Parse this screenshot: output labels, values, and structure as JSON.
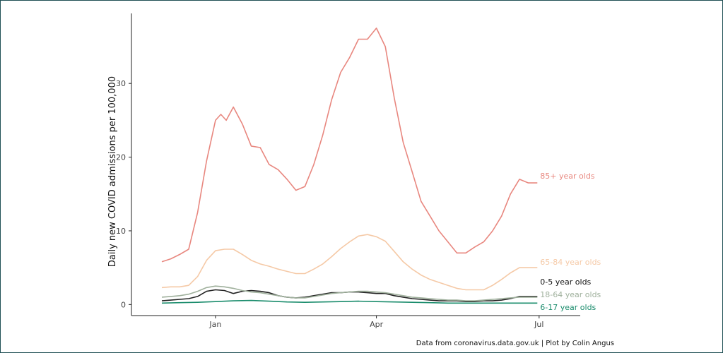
{
  "chart_data": {
    "type": "line",
    "ylabel": "Daily new COVID admissions per 100,000",
    "xlabel": "",
    "ylim": [
      -1.5,
      39.5
    ],
    "yticks": [
      0,
      10,
      20,
      30
    ],
    "xlim": [
      -47,
      204
    ],
    "xticks": [
      {
        "label": "Jan",
        "day": 0
      },
      {
        "label": "Apr",
        "day": 90
      },
      {
        "label": "Jul",
        "day": 181
      }
    ],
    "caption": "Data from coronavirus.data.gov.uk | Plot by Colin Angus",
    "grid": false,
    "legend": "direct labels at line ends",
    "series": [
      {
        "name": "85+ year olds",
        "color": "#e8877f",
        "x": [
          -30,
          -25,
          -20,
          -15,
          -10,
          -5,
          0,
          3,
          6,
          10,
          15,
          20,
          25,
          30,
          35,
          40,
          45,
          50,
          55,
          60,
          65,
          70,
          75,
          80,
          85,
          90,
          95,
          100,
          105,
          110,
          115,
          120,
          125,
          130,
          135,
          140,
          145,
          150,
          155,
          160,
          165,
          170,
          175,
          180
        ],
        "y": [
          5.8,
          6.2,
          6.8,
          7.5,
          12.5,
          19.5,
          25.0,
          25.8,
          25.0,
          26.8,
          24.5,
          21.5,
          21.3,
          19.0,
          18.3,
          17.0,
          15.5,
          16.0,
          19.0,
          23.0,
          27.8,
          31.5,
          33.5,
          36.0,
          36.0,
          37.5,
          35.0,
          28.0,
          22.0,
          18.0,
          14.0,
          12.0,
          10.0,
          8.5,
          7.0,
          7.0,
          7.8,
          8.5,
          10.0,
          12.0,
          15.0,
          17.0,
          16.5,
          16.5
        ]
      },
      {
        "name": "65-84 year olds",
        "color": "#f5c9a6",
        "x": [
          -30,
          -25,
          -20,
          -15,
          -10,
          -5,
          0,
          5,
          10,
          15,
          20,
          25,
          30,
          35,
          40,
          45,
          50,
          55,
          60,
          65,
          70,
          75,
          80,
          85,
          90,
          95,
          100,
          105,
          110,
          115,
          120,
          125,
          130,
          135,
          140,
          145,
          150,
          155,
          160,
          165,
          170,
          175,
          180
        ],
        "y": [
          2.3,
          2.4,
          2.4,
          2.6,
          3.8,
          6.0,
          7.3,
          7.5,
          7.5,
          6.8,
          6.0,
          5.5,
          5.2,
          4.8,
          4.5,
          4.2,
          4.2,
          4.8,
          5.5,
          6.5,
          7.6,
          8.5,
          9.3,
          9.5,
          9.2,
          8.6,
          7.2,
          5.8,
          4.8,
          4.0,
          3.4,
          3.0,
          2.6,
          2.2,
          2.0,
          2.0,
          2.0,
          2.6,
          3.4,
          4.3,
          5.0,
          5.0,
          5.0
        ]
      },
      {
        "name": "0-5 year olds",
        "color": "#222222",
        "x": [
          -30,
          -25,
          -20,
          -15,
          -10,
          -5,
          0,
          5,
          10,
          15,
          20,
          25,
          30,
          35,
          40,
          45,
          50,
          55,
          60,
          65,
          70,
          75,
          80,
          85,
          90,
          95,
          100,
          105,
          110,
          115,
          120,
          125,
          130,
          135,
          140,
          145,
          150,
          155,
          160,
          165,
          170,
          175,
          180
        ],
        "y": [
          0.5,
          0.6,
          0.7,
          0.8,
          1.1,
          1.8,
          2.0,
          1.9,
          1.5,
          1.8,
          1.9,
          1.8,
          1.6,
          1.2,
          1.0,
          0.9,
          1.0,
          1.2,
          1.4,
          1.6,
          1.6,
          1.7,
          1.7,
          1.6,
          1.5,
          1.5,
          1.2,
          1.0,
          0.8,
          0.7,
          0.6,
          0.5,
          0.5,
          0.5,
          0.4,
          0.4,
          0.5,
          0.5,
          0.6,
          0.8,
          1.1,
          1.1,
          1.1
        ]
      },
      {
        "name": "18-64 year olds",
        "color": "#9fb09c",
        "x": [
          -30,
          -25,
          -20,
          -15,
          -10,
          -5,
          0,
          5,
          10,
          15,
          20,
          25,
          30,
          35,
          40,
          45,
          50,
          55,
          60,
          65,
          70,
          75,
          80,
          85,
          90,
          95,
          100,
          105,
          110,
          115,
          120,
          125,
          130,
          135,
          140,
          145,
          150,
          155,
          160,
          165,
          170,
          175,
          180
        ],
        "y": [
          1.0,
          1.1,
          1.2,
          1.4,
          1.8,
          2.3,
          2.5,
          2.4,
          2.2,
          1.9,
          1.7,
          1.6,
          1.4,
          1.2,
          1.0,
          0.9,
          0.9,
          1.1,
          1.3,
          1.5,
          1.6,
          1.7,
          1.8,
          1.8,
          1.7,
          1.6,
          1.4,
          1.2,
          1.0,
          0.9,
          0.8,
          0.7,
          0.6,
          0.6,
          0.5,
          0.5,
          0.6,
          0.7,
          0.8,
          0.9,
          1.0,
          1.0,
          1.0
        ]
      },
      {
        "name": "6-17 year olds",
        "color": "#1a8c6c",
        "x": [
          -30,
          -20,
          -10,
          0,
          10,
          20,
          30,
          40,
          50,
          60,
          70,
          80,
          90,
          100,
          110,
          120,
          130,
          140,
          150,
          160,
          170,
          180
        ],
        "y": [
          0.2,
          0.25,
          0.3,
          0.4,
          0.5,
          0.55,
          0.45,
          0.35,
          0.3,
          0.35,
          0.4,
          0.45,
          0.4,
          0.35,
          0.3,
          0.25,
          0.2,
          0.2,
          0.2,
          0.2,
          0.2,
          0.2
        ]
      }
    ]
  }
}
